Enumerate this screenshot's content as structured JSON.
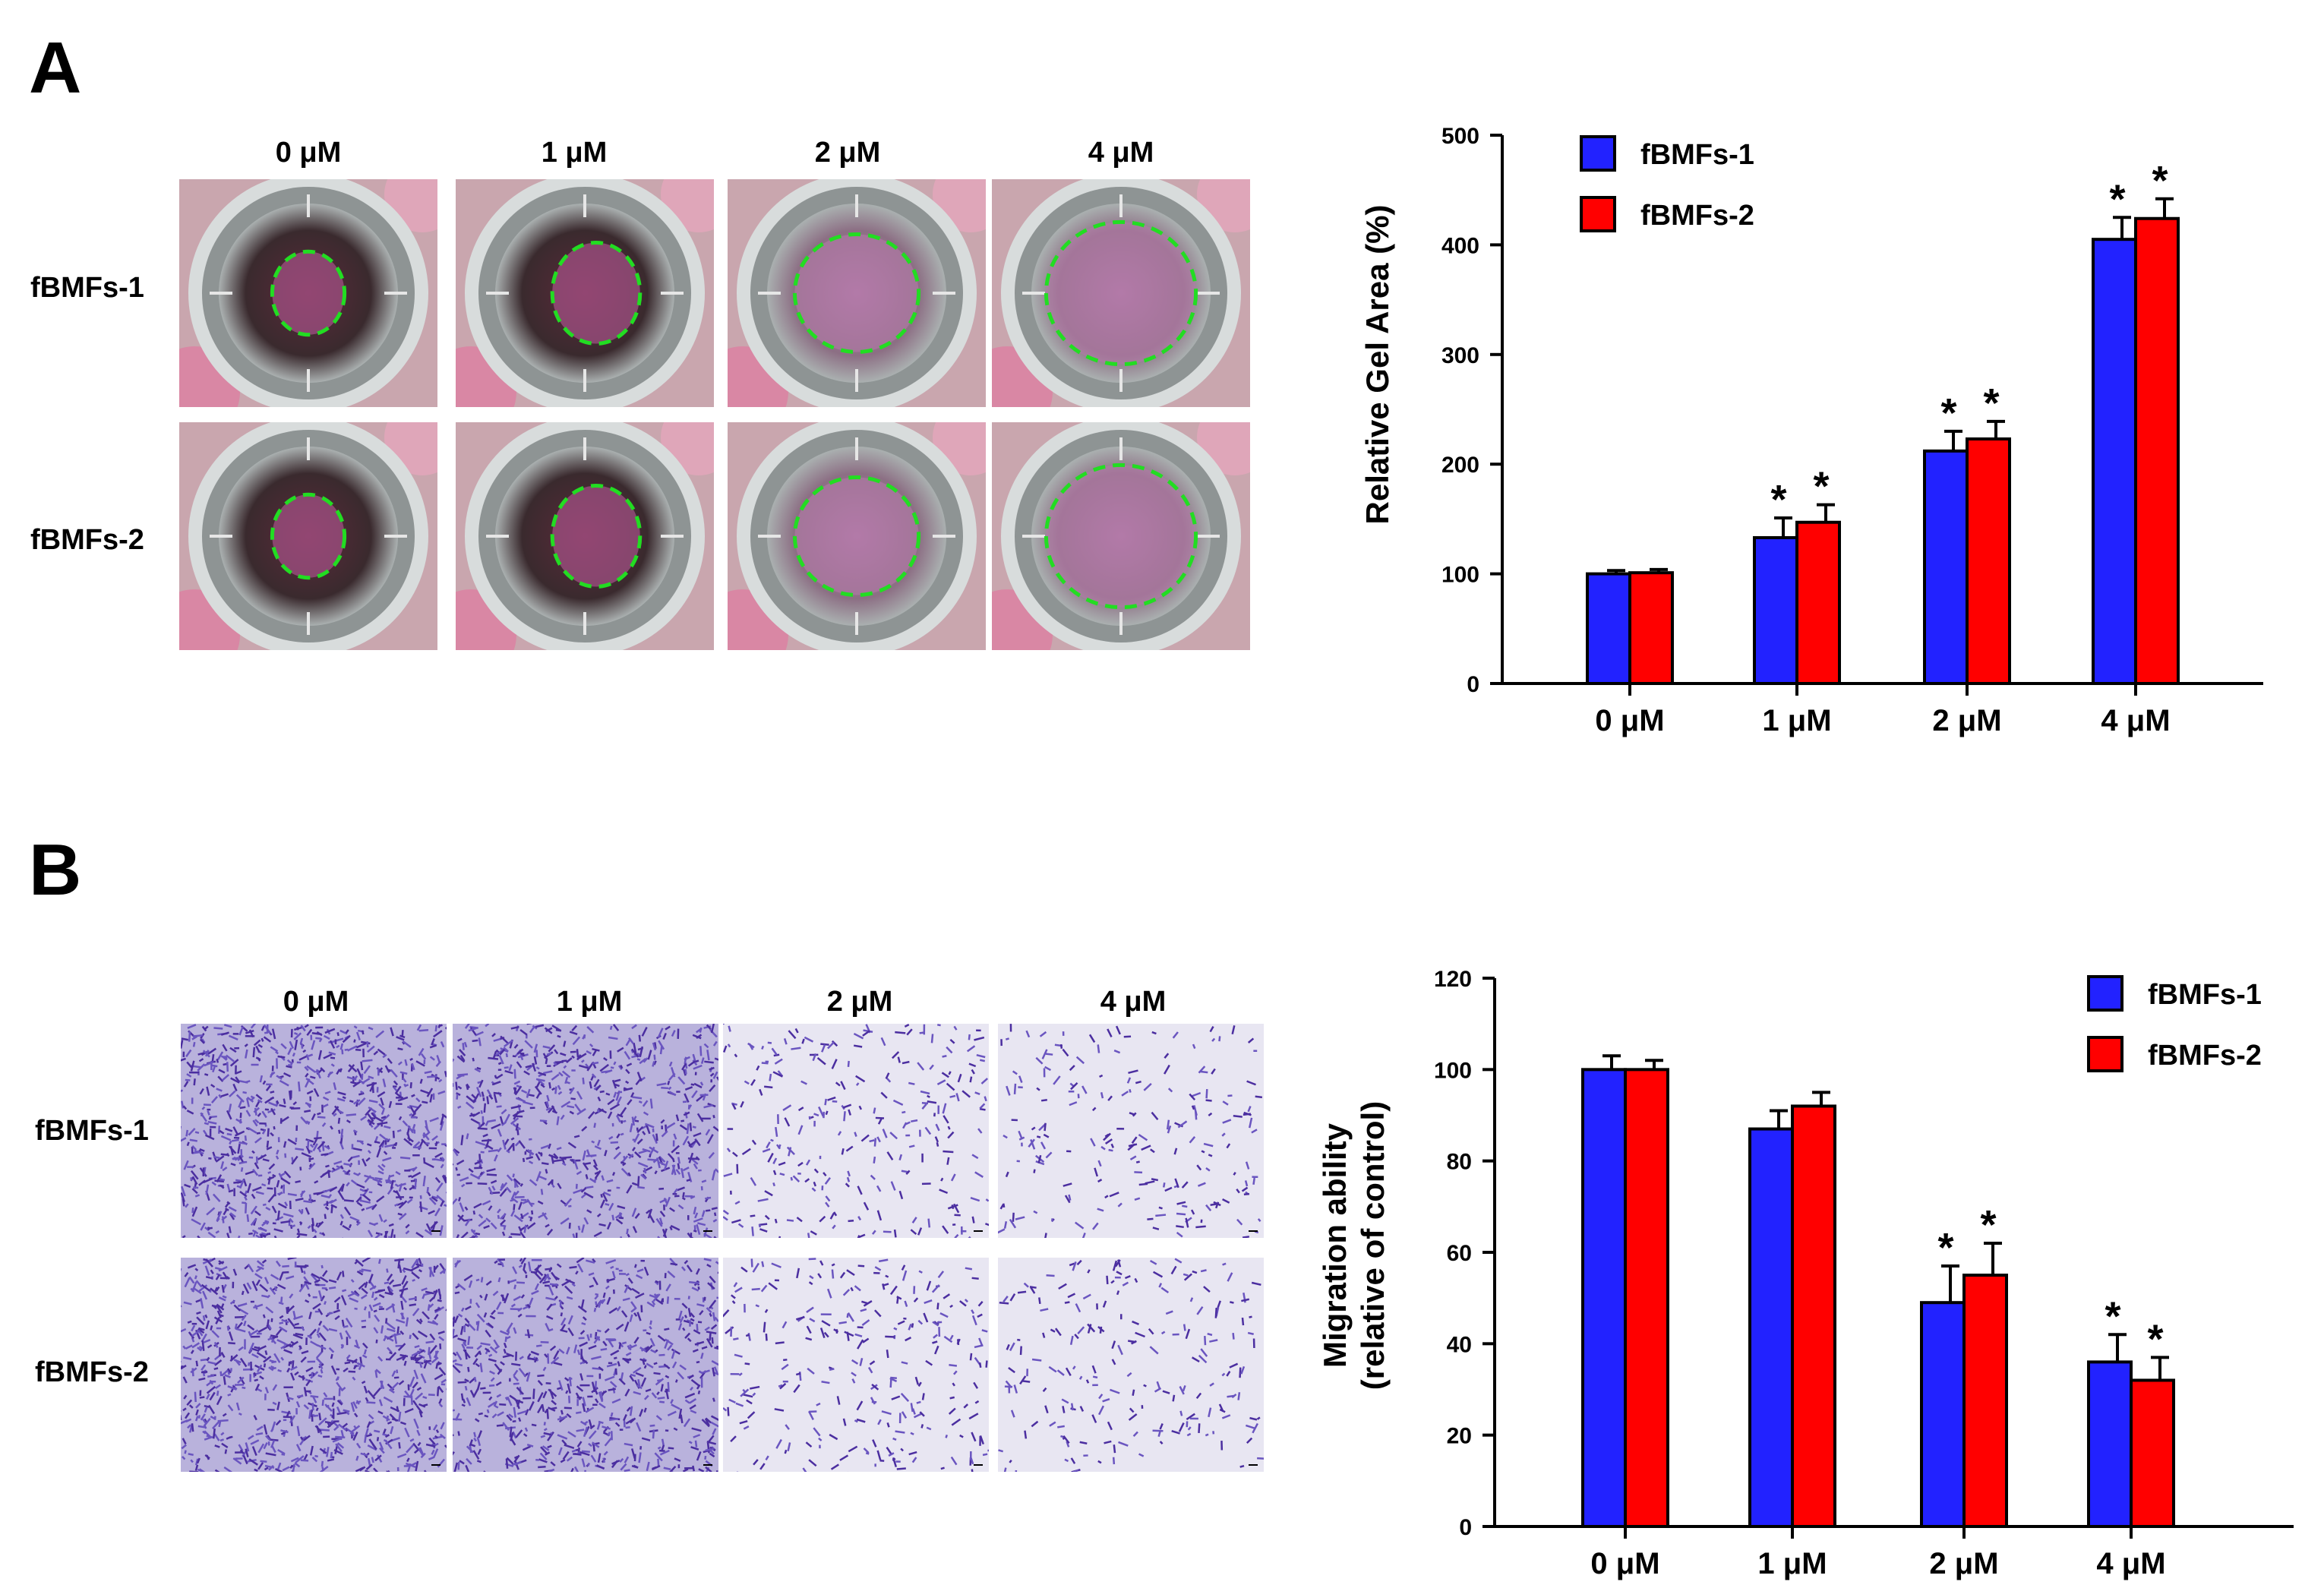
{
  "panels": [
    {
      "letter": "A",
      "concentrations": [
        "0 μM",
        "1 μM",
        "2 μM",
        "4 μM"
      ],
      "rows": [
        "fBMFs-1",
        "fBMFs-2"
      ],
      "image_type": "collagen gel contraction wells with green dashed gel outline"
    },
    {
      "letter": "B",
      "concentrations": [
        "0 μM",
        "1 μM",
        "2 μM",
        "4 μM"
      ],
      "rows": [
        "fBMFs-1",
        "fBMFs-2"
      ],
      "image_type": "crystal violet stained transwell migration fields"
    }
  ],
  "colors": {
    "series1": "#2222ff",
    "series2": "#ff0000",
    "gel_outline": "#22dd22",
    "stain": "#5a3fb0"
  },
  "chart_data": [
    {
      "type": "bar",
      "panel": "A",
      "categories": [
        "0 μM",
        "1 μM",
        "2 μM",
        "4 μM"
      ],
      "series": [
        {
          "name": "fBMFs-1",
          "values": [
            100,
            133,
            212,
            405
          ],
          "errors": [
            3,
            18,
            18,
            20
          ]
        },
        {
          "name": "fBMFs-2",
          "values": [
            101,
            147,
            223,
            424
          ],
          "errors": [
            3,
            16,
            16,
            18
          ]
        }
      ],
      "significance": [
        [
          "",
          "",
          ""
        ],
        [
          "*",
          "*"
        ],
        [
          "*",
          "*"
        ],
        [
          "*",
          "*"
        ]
      ],
      "ylabel": "Relative Gel Area (%)",
      "xlabel": "",
      "ylim": [
        0,
        500
      ],
      "yticks": [
        0,
        100,
        200,
        300,
        400,
        500
      ],
      "legend": "top-left"
    },
    {
      "type": "bar",
      "panel": "B",
      "categories": [
        "0 μM",
        "1 μM",
        "2 μM",
        "4 μM"
      ],
      "series": [
        {
          "name": "fBMFs-1",
          "values": [
            100,
            87,
            49,
            36
          ],
          "errors": [
            3,
            4,
            8,
            6
          ]
        },
        {
          "name": "fBMFs-2",
          "values": [
            100,
            92,
            55,
            32
          ],
          "errors": [
            2,
            3,
            7,
            5
          ]
        }
      ],
      "significance": [
        [
          "",
          ""
        ],
        [
          "",
          ""
        ],
        [
          "*",
          "*"
        ],
        [
          "*",
          "*"
        ]
      ],
      "ylabel": "Migration ability",
      "ylabel2": "(relative of control)",
      "xlabel": "",
      "ylim": [
        0,
        120
      ],
      "yticks": [
        0,
        20,
        40,
        60,
        80,
        100,
        120
      ],
      "legend": "top-right"
    }
  ]
}
